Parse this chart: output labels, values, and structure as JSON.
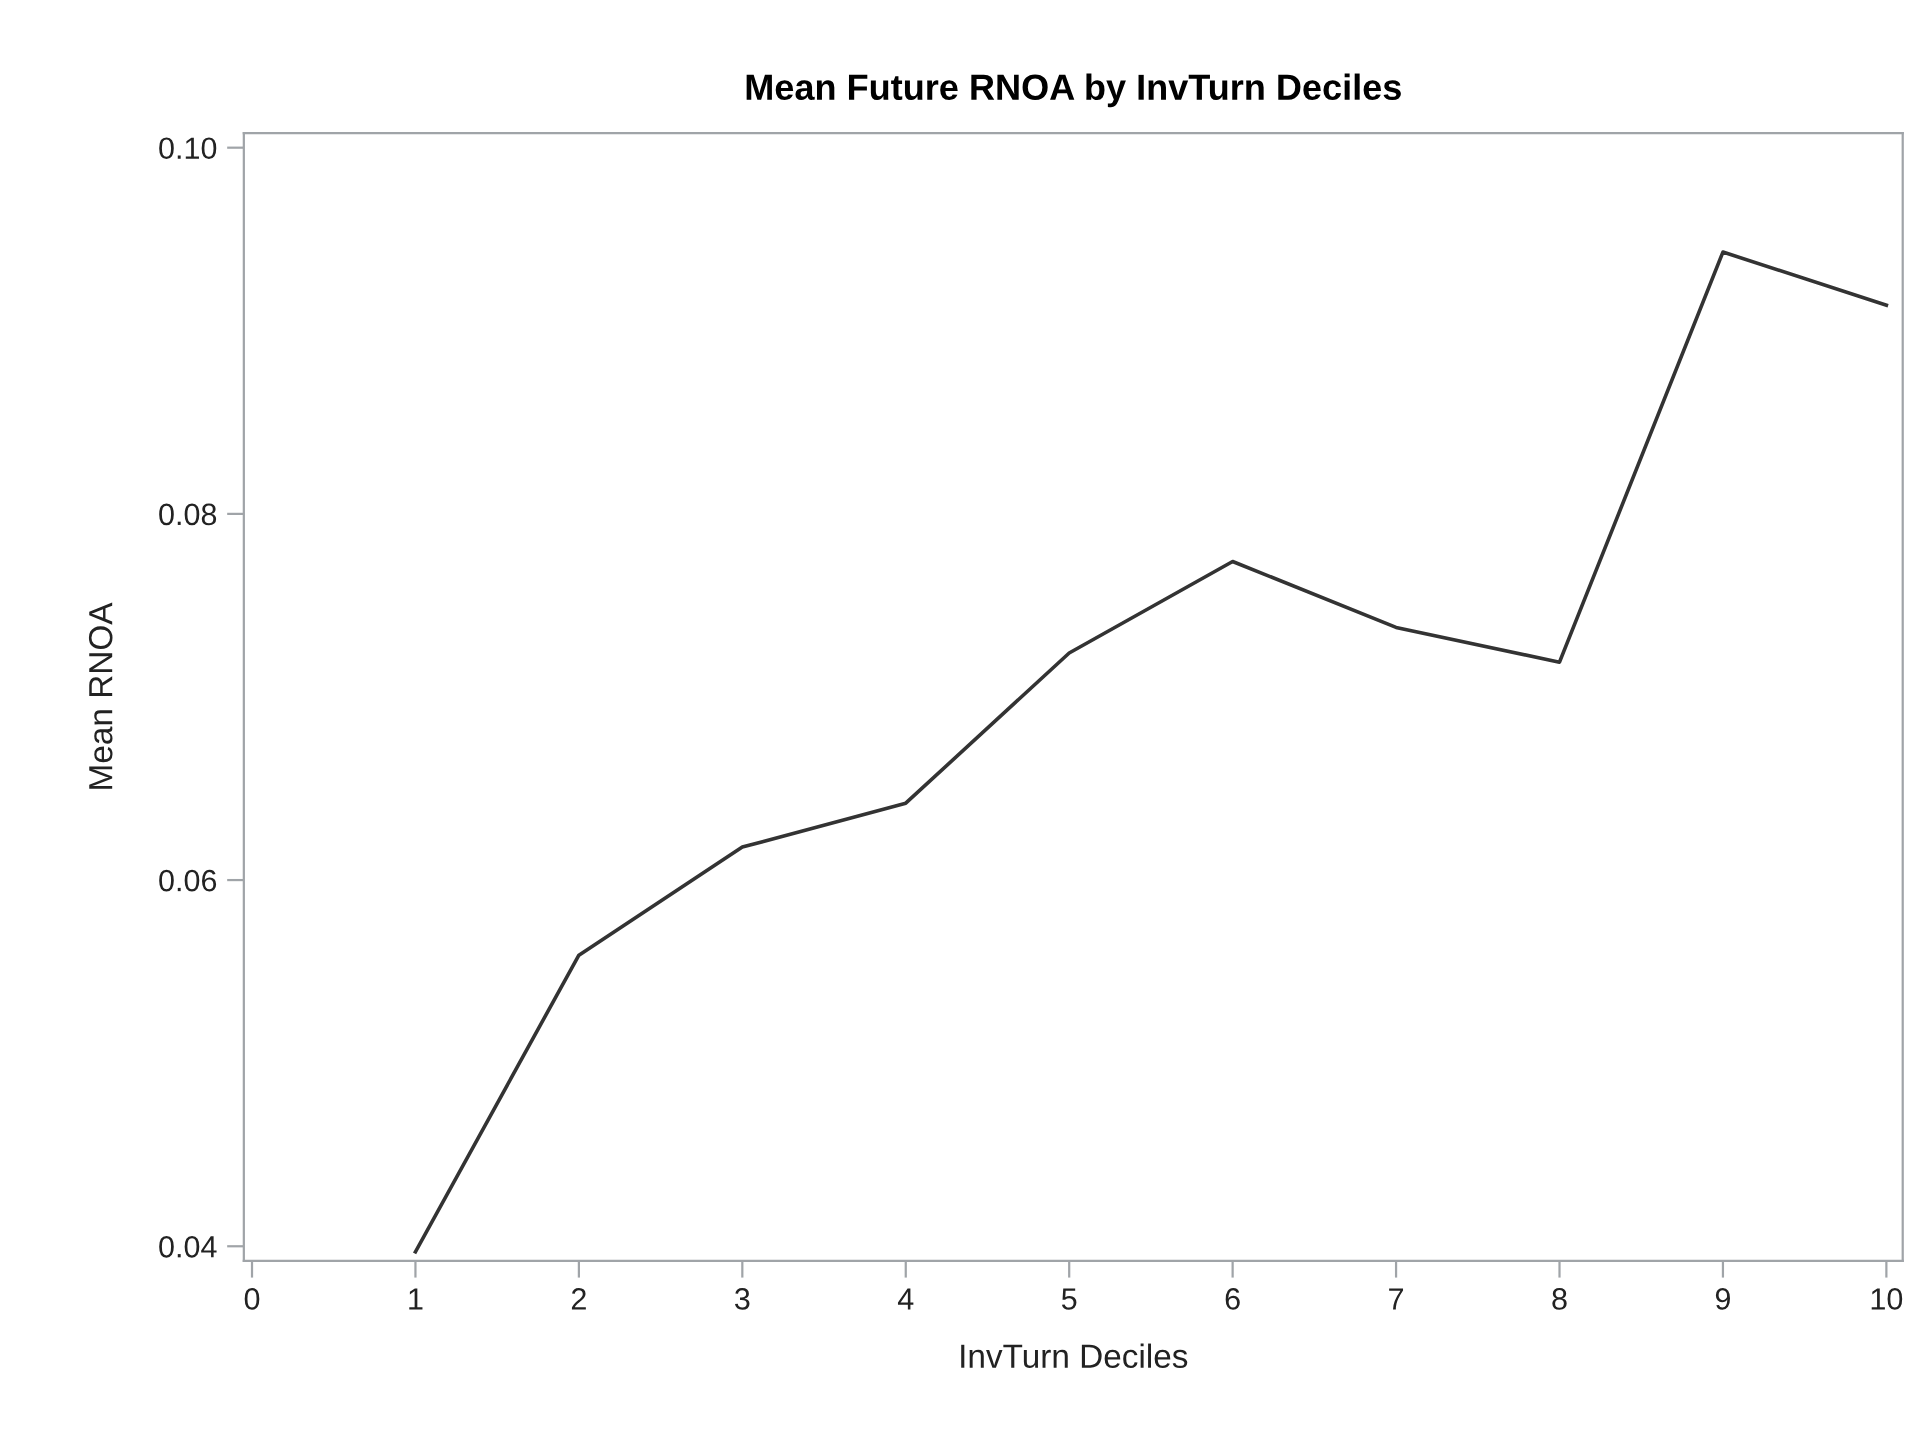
{
  "chart_data": {
    "type": "line",
    "title": "Mean Future RNOA by InvTurn Deciles",
    "xlabel": "InvTurn Deciles",
    "ylabel": "Mean RNOA",
    "x": [
      1,
      2,
      3,
      4,
      5,
      6,
      7,
      8,
      9,
      10
    ],
    "series": [
      {
        "color": "#333333",
        "values": [
          0.0397,
          0.0559,
          0.0618,
          0.0642,
          0.0724,
          0.0774,
          0.0738,
          0.0719,
          0.0943,
          0.0914
        ]
      }
    ],
    "xlim": [
      -0.05,
      10.1
    ],
    "xticks": [
      0,
      1,
      2,
      3,
      4,
      5,
      6,
      7,
      8,
      9,
      10
    ],
    "ylim": [
      0.0392,
      0.1008
    ],
    "yticks": [
      {
        "value": 0.04,
        "label": "0.04"
      },
      {
        "value": 0.06,
        "label": "0.06"
      },
      {
        "value": 0.08,
        "label": "0.08"
      },
      {
        "value": 0.1,
        "label": "0.10"
      }
    ],
    "grid": false,
    "legend": false,
    "marker": "none",
    "line_style": "solid"
  }
}
